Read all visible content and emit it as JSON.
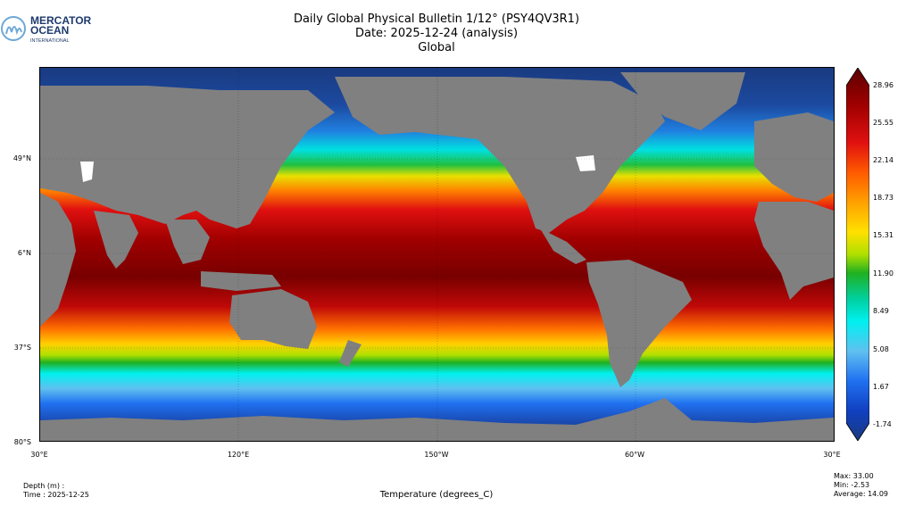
{
  "logo": {
    "line1": "MERCATOR",
    "line2": "OCEAN",
    "line3": "INTERNATIONAL",
    "icon": "mercator-m-logo"
  },
  "title": {
    "line1": "Daily Global Physical Bulletin 1/12° (PSY4QV3R1)",
    "line2": "Date: 2025-12-24 (analysis)",
    "line3": "Global"
  },
  "axes": {
    "lat_labels": [
      "49°N",
      "6°N",
      "37°S",
      "80°S"
    ],
    "lon_labels": [
      "30°E",
      "120°E",
      "150°W",
      "60°W",
      "30°E"
    ]
  },
  "colorbar": {
    "ticks": [
      "28.96",
      "25.55",
      "22.14",
      "18.73",
      "15.31",
      "11.90",
      "8.49",
      "5.08",
      "1.67",
      "-1.74"
    ],
    "colors": [
      "#5a0000",
      "#a00000",
      "#e01010",
      "#ff5a00",
      "#ffa000",
      "#ffe000",
      "#b0e000",
      "#20b020",
      "#00d0a0",
      "#00f0f0",
      "#60c0f0",
      "#2070f0",
      "#1040c0",
      "#1a3a80"
    ]
  },
  "footer": {
    "depth": "Depth (m) :",
    "time": "Time : 2025-12-25",
    "xlabel": "Temperature (degrees_C)",
    "max": "Max: 33.00",
    "min": "Min: -2.53",
    "avg": "Average: 14.09"
  },
  "colors": {
    "land": "#808080",
    "ice": "#ffffff",
    "frame": "#000000",
    "background": "#ffffff"
  }
}
